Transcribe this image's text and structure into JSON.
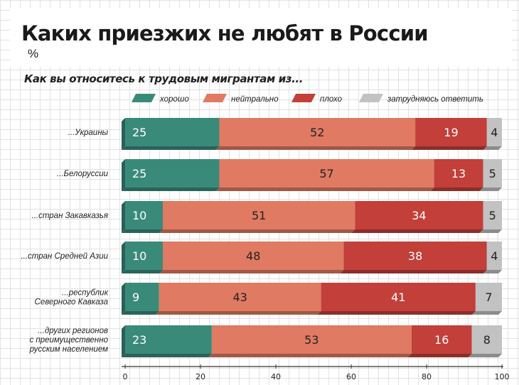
{
  "header": {
    "title": "Каких приезжих не любят в России",
    "unit": "%"
  },
  "chart_data": {
    "type": "bar",
    "orientation": "horizontal",
    "stacked": true,
    "title": "Каких приезжих не любят в России",
    "subtitle": "Как вы относитесь к трудовым мигрантам из...",
    "unit": "%",
    "categories": [
      [
        "...Украины"
      ],
      [
        "...Белорусcии"
      ],
      [
        "...стран Закавказья"
      ],
      [
        "...стран Средней Азии"
      ],
      [
        "...республик",
        "Северного Кавказа"
      ],
      [
        "...других регионов",
        "с преимущественно",
        "русским населением"
      ]
    ],
    "series": [
      {
        "name": "хорошо",
        "color": "#3a8a7a",
        "values": [
          25,
          25,
          10,
          10,
          9,
          23
        ]
      },
      {
        "name": "нейтрально",
        "color": "#e07a62",
        "values": [
          52,
          57,
          51,
          48,
          43,
          53
        ]
      },
      {
        "name": "плохо",
        "color": "#c23f3a",
        "values": [
          19,
          13,
          34,
          38,
          41,
          16
        ]
      },
      {
        "name": "затрудняюсь ответить",
        "color": "#c2c2c2",
        "values": [
          4,
          5,
          5,
          4,
          7,
          8
        ]
      }
    ],
    "xlim": [
      0,
      100
    ],
    "xticks": [
      0,
      20,
      40,
      60,
      80,
      100
    ],
    "grid": true,
    "legend": "top"
  }
}
